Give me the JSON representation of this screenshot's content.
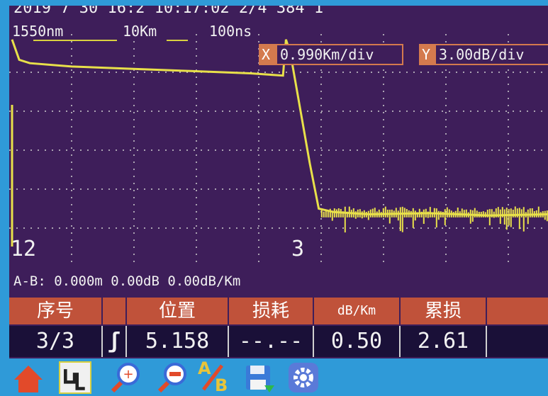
{
  "header": {
    "top_text": "2019  7  30  16:2  10:17:02        2/4  384  1",
    "wavelength": "1550nm",
    "range": "10Km",
    "pulse": "100ns"
  },
  "scale": {
    "x_label": "X",
    "x_value": "0.990Km/div",
    "y_label": "Y",
    "y_value": "3.00dB/div"
  },
  "markers": {
    "left": "12",
    "right": "3"
  },
  "ab_line": "A-B:  0.000m  0.00dB  0.00dB/Km",
  "table": {
    "headers": [
      "序号",
      "",
      "位置",
      "损耗",
      "dB/Km",
      "累损",
      ""
    ],
    "row": {
      "index": "3/3",
      "event_icon": "ʃ",
      "position": "5.158",
      "loss": "--.--",
      "db_per_km": "0.50",
      "cumulative": "2.61"
    }
  },
  "toolbar": {
    "items": [
      "home-icon",
      "event-icon",
      "zoom-in-icon",
      "zoom-out-icon",
      "ab-icon",
      "save-icon",
      "settings-icon"
    ],
    "ab_text_a": "A",
    "ab_text_b": "B"
  },
  "colors": {
    "background": "#3e1e5a",
    "trace": "#e8e04a",
    "accent": "#c0523a",
    "frame": "#2f9ad8"
  },
  "chart_data": {
    "type": "line",
    "title": "",
    "xlabel": "",
    "ylabel": "",
    "x_units_per_div": "0.990Km/div",
    "y_units_per_div": "3.00dB/div",
    "grid": true,
    "series": [
      {
        "x": [
          0.0,
          0.12,
          0.3,
          1.0,
          2.0,
          3.0,
          4.0,
          4.55,
          4.6,
          4.63,
          4.7,
          5.0,
          5.15,
          5.4,
          6.0,
          7.0,
          8.0,
          9.0
        ],
        "y": [
          21.0,
          19.2,
          18.9,
          18.6,
          18.4,
          18.2,
          18.0,
          17.8,
          21.0,
          20.5,
          19.0,
          10.0,
          6.0,
          5.7,
          5.5,
          5.6,
          5.4,
          5.5
        ]
      }
    ]
  }
}
